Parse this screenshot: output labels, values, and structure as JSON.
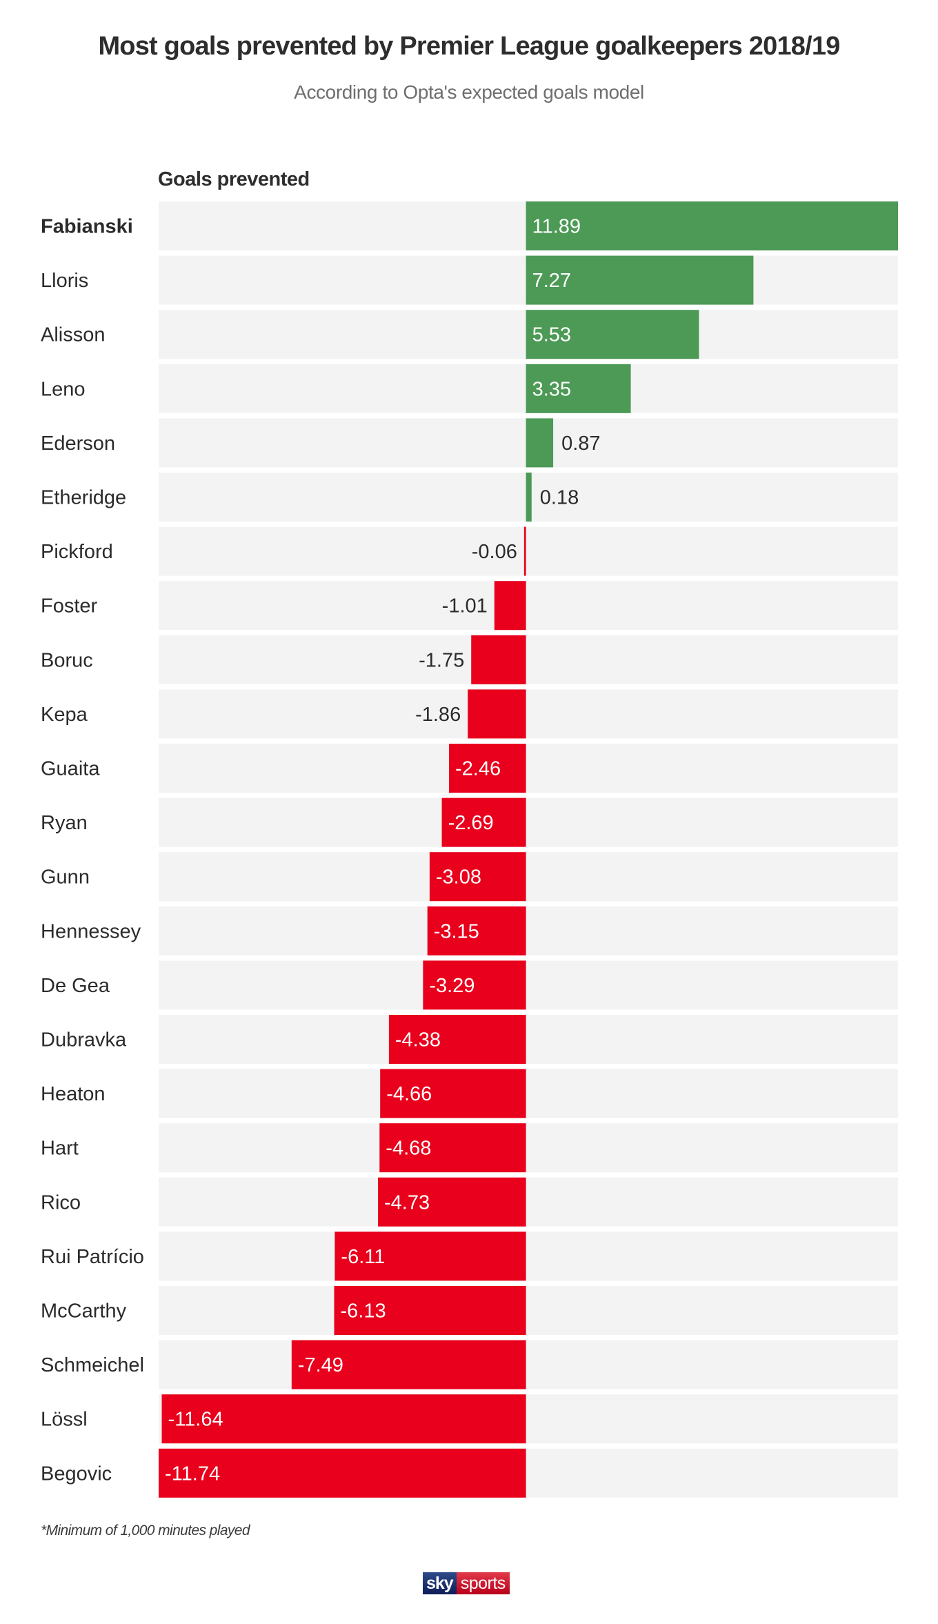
{
  "header": {
    "title": "Most goals prevented by Premier League goalkeepers 2018/19",
    "subtitle": "According to Opta's expected goals model"
  },
  "footer": {
    "footnote": "*Minimum of 1,000 minutes played",
    "logo_sky": "sky",
    "logo_sports": "sports"
  },
  "colors": {
    "positive": "#4c9a55",
    "negative": "#e8001c",
    "track": "#f3f3f3",
    "label_text": "#2b2b2b",
    "inside_text": "#ffffff"
  },
  "chart_data": {
    "type": "bar",
    "orientation": "horizontal",
    "title": "Most goals prevented by Premier League goalkeepers 2018/19",
    "subtitle": "According to Opta's expected goals model",
    "xlabel": "Goals prevented",
    "ylabel": "",
    "xlim": [
      -11.74,
      11.89
    ],
    "grid": false,
    "legend": "none",
    "highlighted_category": "Fabianski",
    "categories": [
      "Fabianski",
      "Lloris",
      "Alisson",
      "Leno",
      "Ederson",
      "Etheridge",
      "Pickford",
      "Foster",
      "Boruc",
      "Kepa",
      "Guaita",
      "Ryan",
      "Gunn",
      "Hennessey",
      "De Gea",
      "Dubravka",
      "Heaton",
      "Hart",
      "Rico",
      "Rui Patrício",
      "McCarthy",
      "Schmeichel",
      "Lössl",
      "Begovic"
    ],
    "values": [
      11.89,
      7.27,
      5.53,
      3.35,
      0.87,
      0.18,
      -0.06,
      -1.01,
      -1.75,
      -1.86,
      -2.46,
      -2.69,
      -3.08,
      -3.15,
      -3.29,
      -4.38,
      -4.66,
      -4.68,
      -4.73,
      -6.11,
      -6.13,
      -7.49,
      -11.64,
      -11.74
    ],
    "labels": [
      "11.89",
      "7.27",
      "5.53",
      "3.35",
      "0.87",
      "0.18",
      "-0.06",
      "-1.01",
      "-1.75",
      "-1.86",
      "-2.46",
      "-2.69",
      "-3.08",
      "-3.15",
      "-3.29",
      "-4.38",
      "-4.66",
      "-4.68",
      "-4.73",
      "-6.11",
      "-6.13",
      "-7.49",
      "-11.64",
      "-11.74"
    ]
  }
}
